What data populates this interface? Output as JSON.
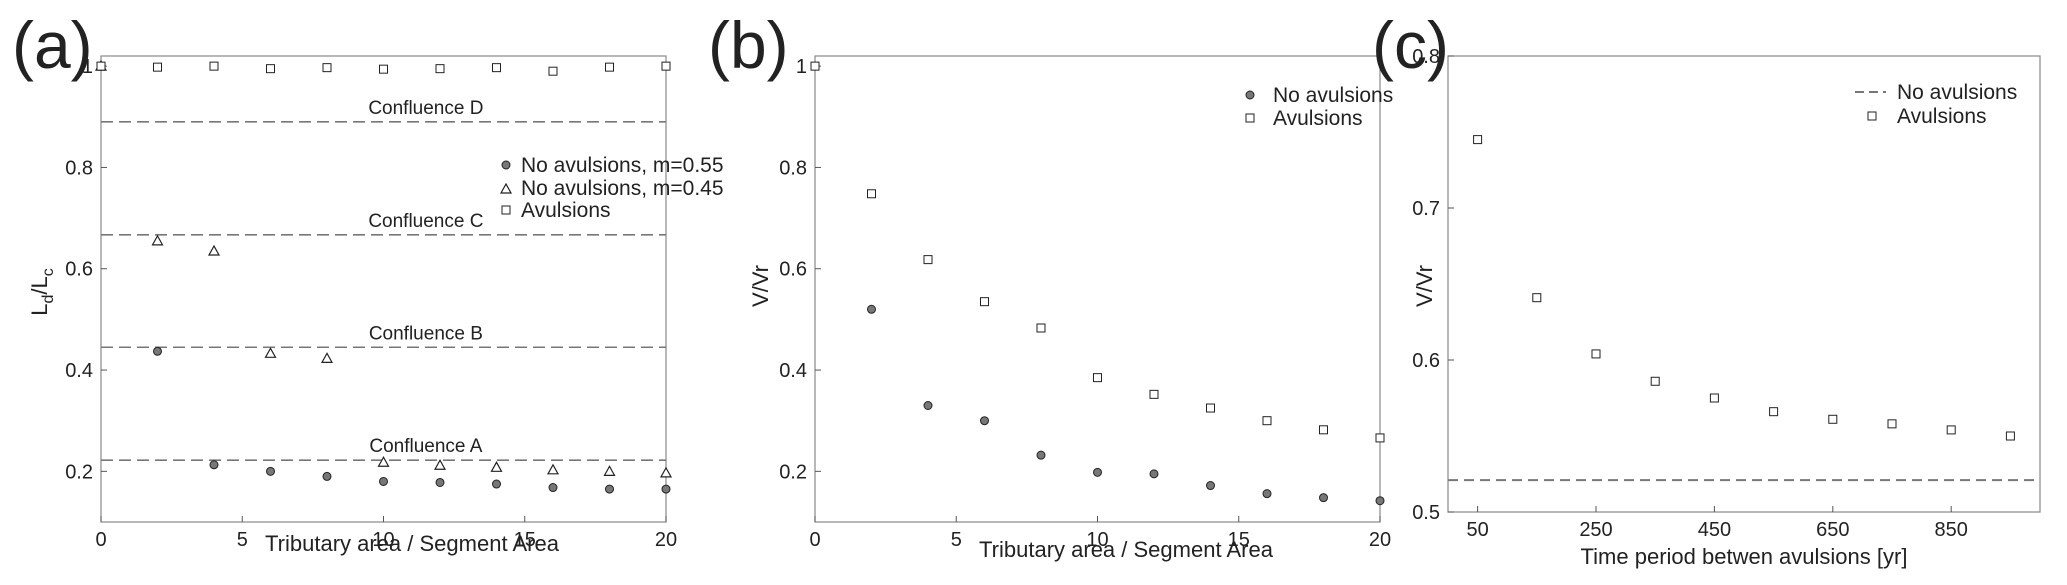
{
  "chart_data": [
    {
      "type": "scatter",
      "panel": "(a)",
      "xlabel": "Tributary area / Segment Area",
      "ylabel_main": "L",
      "ylabel_sub1": "d",
      "ylabel_sep": "/L",
      "ylabel_sub2": "c",
      "xlim": [
        0,
        20
      ],
      "ylim": [
        0.1,
        1.02
      ],
      "xticks": [
        "0",
        "5",
        "10",
        "15",
        "20"
      ],
      "yticks": [
        "0.2",
        "0.4",
        "0.6",
        "0.8",
        "1"
      ],
      "legend": "right-middle",
      "series": [
        {
          "name": "No avulsions, m=0.55",
          "marker": "circle",
          "x": [
            0,
            2,
            4,
            6,
            8,
            10,
            12,
            14,
            16,
            18,
            20
          ],
          "y": [
            1.0,
            0.437,
            0.213,
            0.2,
            0.19,
            0.18,
            0.178,
            0.175,
            0.168,
            0.165,
            0.165
          ]
        },
        {
          "name": "No avulsions, m=0.45",
          "marker": "triangle",
          "x": [
            0,
            2,
            4,
            6,
            8,
            10,
            12,
            14,
            16,
            18,
            20
          ],
          "y": [
            1.0,
            0.655,
            0.635,
            0.433,
            0.423,
            0.218,
            0.212,
            0.208,
            0.203,
            0.2,
            0.197
          ]
        },
        {
          "name": "Avulsions",
          "marker": "square",
          "x": [
            0,
            2,
            4,
            6,
            8,
            10,
            12,
            14,
            16,
            18,
            20
          ],
          "y": [
            1.0,
            0.998,
            1.0,
            0.995,
            0.997,
            0.994,
            0.995,
            0.997,
            0.99,
            0.998,
            1.0
          ]
        }
      ],
      "hlines": [
        {
          "label": "Confluence D",
          "y": 0.89
        },
        {
          "label": "Confluence C",
          "y": 0.667
        },
        {
          "label": "Confluence B",
          "y": 0.445
        },
        {
          "label": "Confluence A",
          "y": 0.222
        }
      ]
    },
    {
      "type": "scatter",
      "panel": "(b)",
      "xlabel": "Tributary area / Segment Area",
      "ylabel": "V/Vr",
      "xlim": [
        0,
        20
      ],
      "ylim": [
        0.1,
        1.02
      ],
      "xticks": [
        "0",
        "5",
        "10",
        "15",
        "20"
      ],
      "yticks": [
        "0.2",
        "0.4",
        "0.6",
        "0.8",
        "1"
      ],
      "legend": "top-right",
      "series": [
        {
          "name": "No avulsions",
          "marker": "circle",
          "x": [
            0,
            2,
            4,
            6,
            8,
            10,
            12,
            14,
            16,
            18,
            20
          ],
          "y": [
            1.0,
            0.52,
            0.33,
            0.3,
            0.232,
            0.198,
            0.195,
            0.172,
            0.156,
            0.148,
            0.142
          ]
        },
        {
          "name": "Avulsions",
          "marker": "square",
          "x": [
            0,
            2,
            4,
            6,
            8,
            10,
            12,
            14,
            16,
            18,
            20
          ],
          "y": [
            1.0,
            0.748,
            0.618,
            0.535,
            0.483,
            0.385,
            0.352,
            0.325,
            0.3,
            0.282,
            0.266
          ]
        }
      ]
    },
    {
      "type": "scatter",
      "panel": "(c)",
      "xlabel": "Time period betwen avulsions [yr]",
      "ylabel": "V/Vr",
      "xlim": [
        0,
        1000
      ],
      "ylim": [
        0.5,
        0.8
      ],
      "xticks": [
        "50",
        "250",
        "450",
        "650",
        "850"
      ],
      "yticks": [
        "0.5",
        "0.6",
        "0.7",
        "0.8"
      ],
      "legend": "top-right",
      "series": [
        {
          "name": "No avulsions",
          "marker": "dashed-line",
          "x": [
            0,
            1000
          ],
          "y": [
            0.521,
            0.521
          ]
        },
        {
          "name": "Avulsions",
          "marker": "square",
          "x": [
            50,
            150,
            250,
            350,
            450,
            550,
            650,
            750,
            850,
            950
          ],
          "y": [
            0.745,
            0.641,
            0.604,
            0.586,
            0.575,
            0.566,
            0.561,
            0.558,
            0.554,
            0.55
          ]
        }
      ]
    }
  ]
}
